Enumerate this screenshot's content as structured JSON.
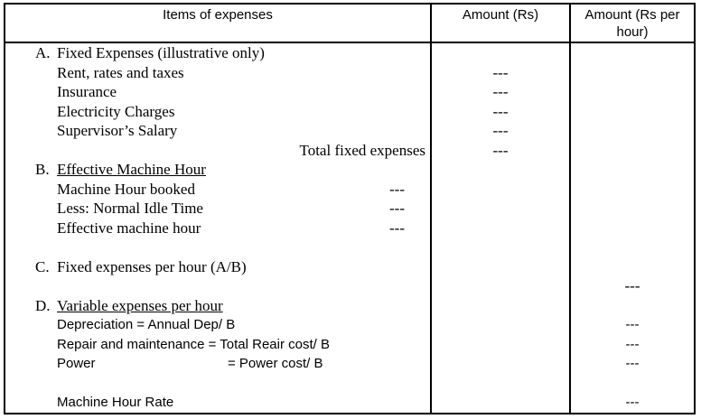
{
  "colors": {
    "text": "#000000",
    "background": "#ffffff",
    "border": "#000000"
  },
  "table": {
    "columns": [
      {
        "label": "Items of expenses"
      },
      {
        "label": "Amount (Rs)"
      },
      {
        "label": "Amount (Rs per hour)"
      }
    ],
    "placeholder": "---",
    "rows": [
      {
        "letter": "A.",
        "text": "Fixed Expenses (illustrative only)"
      },
      {
        "text": "Rent, rates and taxes",
        "amount_rs": "---"
      },
      {
        "text": "Insurance",
        "amount_rs": "---"
      },
      {
        "text": "Electricity Charges",
        "amount_rs": "---"
      },
      {
        "text": "Supervisor’s Salary",
        "amount_rs": "---"
      },
      {
        "text": "Total fixed expenses",
        "align": "right",
        "amount_rs": "---"
      },
      {
        "letter": "B.",
        "text": "Effective Machine Hour",
        "underline": true
      },
      {
        "text": "Machine Hour booked",
        "col1_value": "---"
      },
      {
        "text": "Less: Normal Idle Time",
        "col1_value": "---"
      },
      {
        "text": "Effective machine hour",
        "col1_value": "---"
      },
      {},
      {
        "letter": "C.",
        "text": "Fixed expenses per hour (A/B)"
      },
      {
        "amount_per_hour": "---"
      },
      {
        "letter": "D.",
        "text": "Variable expenses per hour",
        "underline": true
      },
      {
        "text": "Depreciation = Annual Dep/ B",
        "font": "sans",
        "amount_per_hour": "---"
      },
      {
        "text": "Repair and maintenance = Total Reair cost/ B",
        "font": "sans",
        "amount_per_hour": "---"
      },
      {
        "text": "Power",
        "tab_text": "= Power cost/ B",
        "font": "sans",
        "amount_per_hour": "---"
      },
      {},
      {
        "text": "Machine Hour Rate",
        "font": "sans",
        "amount_per_hour": "---"
      }
    ]
  }
}
